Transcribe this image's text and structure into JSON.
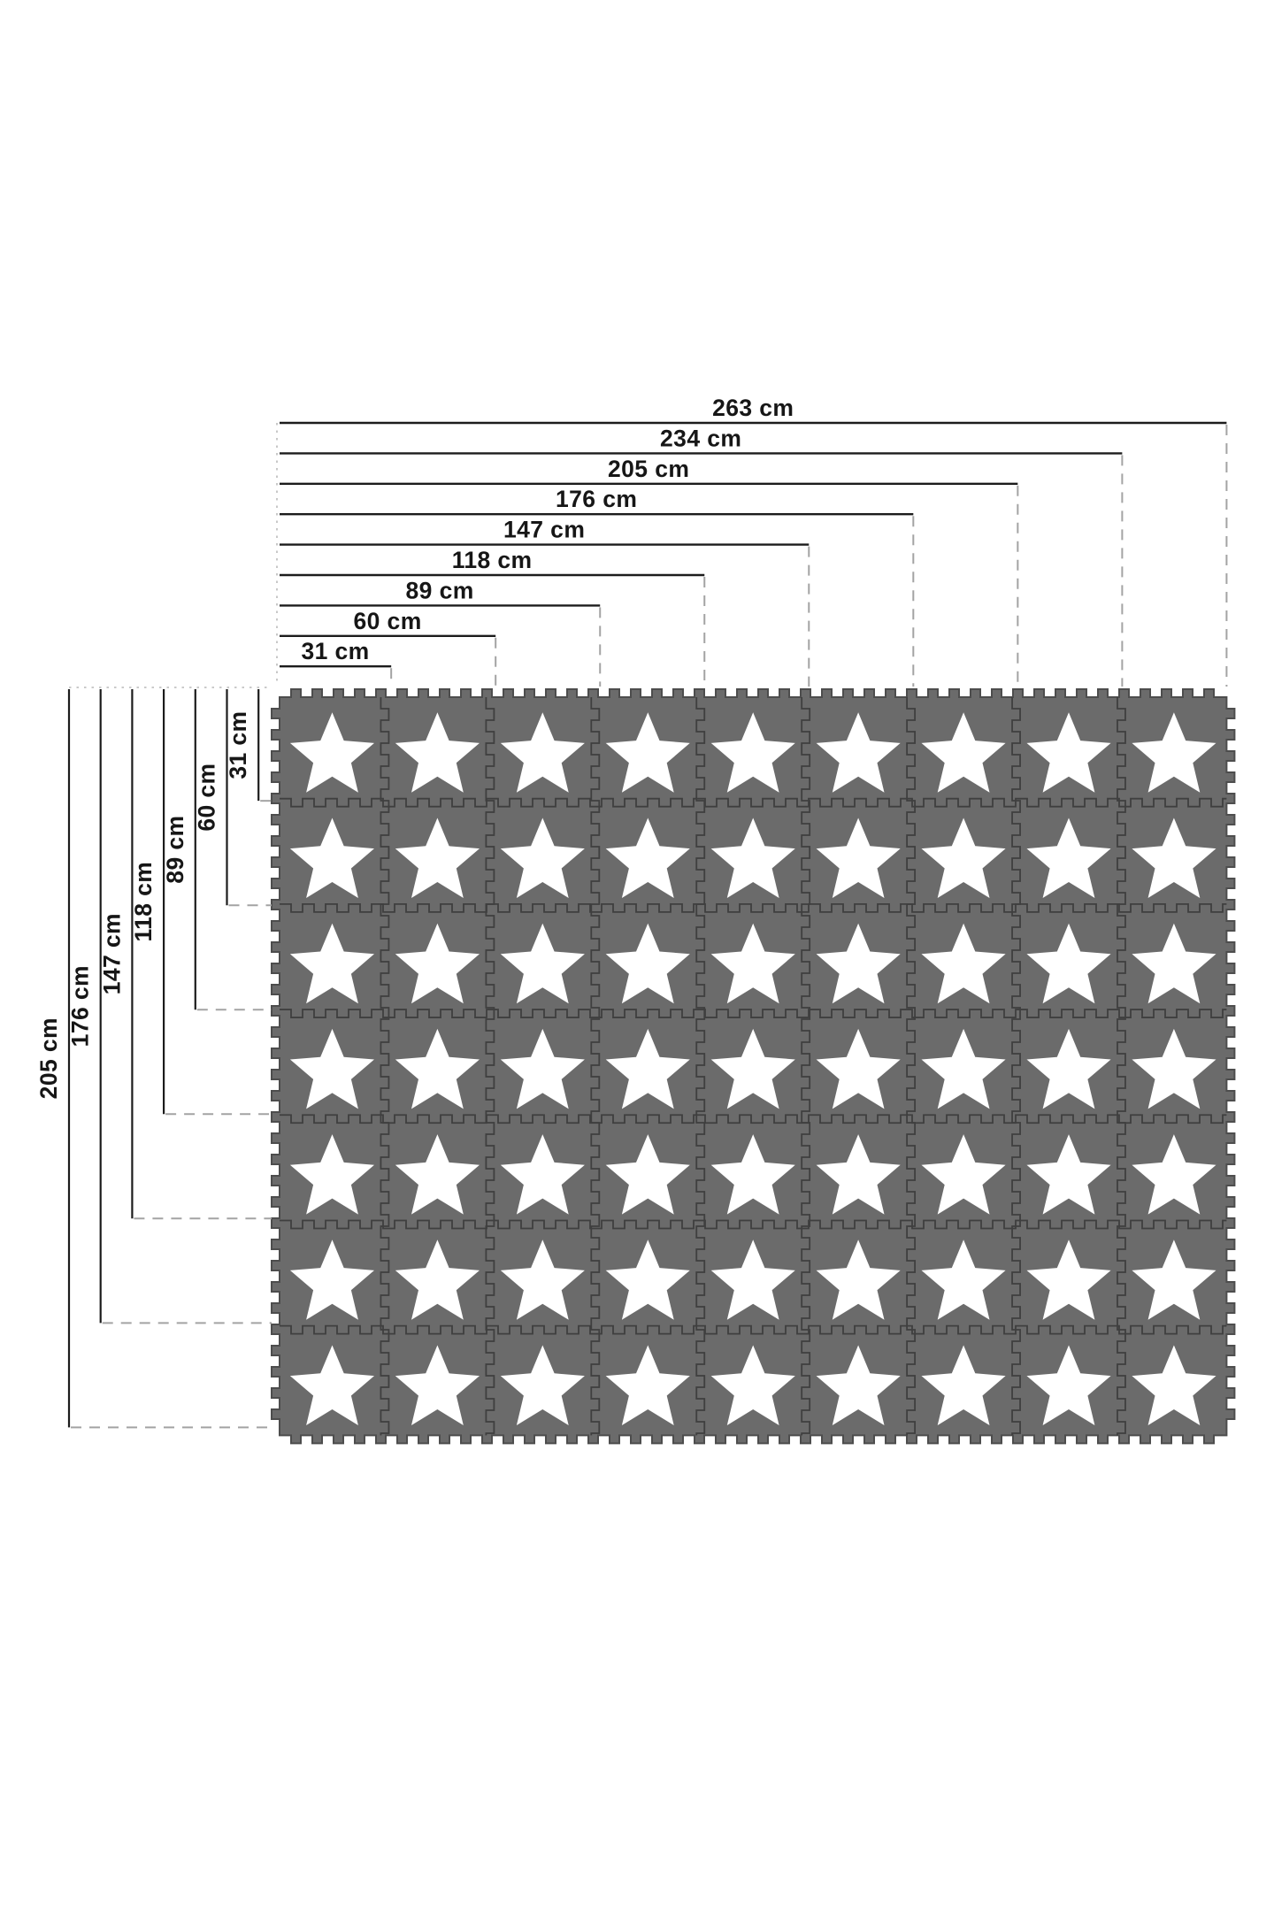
{
  "diagram": {
    "type": "product-dimension-diagram",
    "subject": "interlocking foam puzzle play mat with star tiles",
    "unit": "cm",
    "top_dimensions": [
      {
        "label": "263 cm",
        "cm": 263
      },
      {
        "label": "234 cm",
        "cm": 234
      },
      {
        "label": "205 cm",
        "cm": 205
      },
      {
        "label": "176 cm",
        "cm": 176
      },
      {
        "label": "147 cm",
        "cm": 147
      },
      {
        "label": "118 cm",
        "cm": 118
      },
      {
        "label": "89 cm",
        "cm": 89
      },
      {
        "label": "60 cm",
        "cm": 60
      },
      {
        "label": "31 cm",
        "cm": 31
      }
    ],
    "left_dimensions": [
      {
        "label": "205 cm",
        "cm": 205
      },
      {
        "label": "176 cm",
        "cm": 176
      },
      {
        "label": "147 cm",
        "cm": 147
      },
      {
        "label": "118 cm",
        "cm": 118
      },
      {
        "label": "89 cm",
        "cm": 89
      },
      {
        "label": "60 cm",
        "cm": 60
      },
      {
        "label": "31 cm",
        "cm": 31
      }
    ],
    "mat": {
      "columns": 9,
      "rows": 7,
      "tiles_total": 63,
      "motif": "white-five-pointed-star"
    },
    "colors": {
      "background": "#ffffff",
      "dimension_line": "#1c1c1c",
      "dash_connector": "#a3a3a3",
      "dotted_guide": "#c2c2c2",
      "tile": "#6b6b6b",
      "seam": "#3f3f3f",
      "edge_outline": "#4d4d4d",
      "star": "#ffffff"
    }
  }
}
